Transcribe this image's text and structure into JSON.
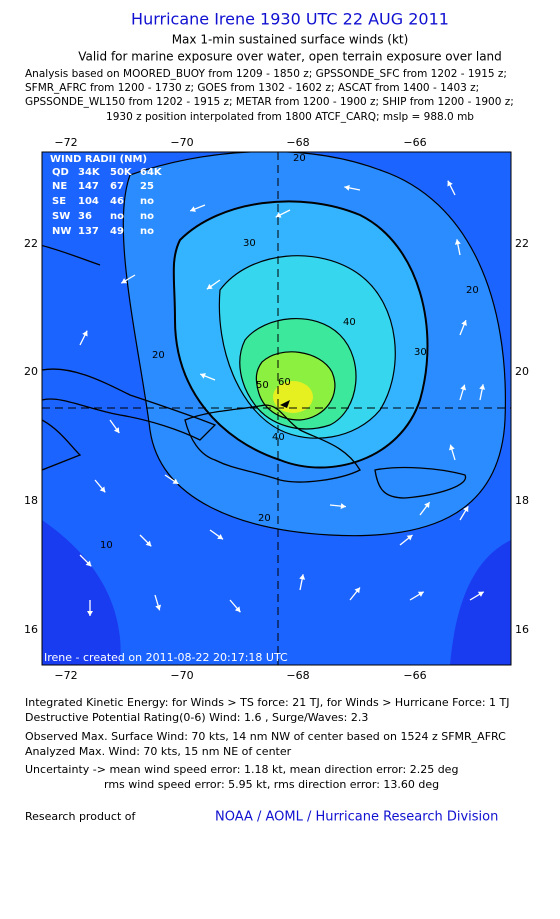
{
  "header": {
    "title": "Hurricane Irene 1930 UTC 22 AUG 2011",
    "subtitle": "Max 1-min sustained surface winds (kt)",
    "validity": "Valid for marine exposure over water, open terrain exposure over land",
    "analysis": [
      "Analysis based on MOORED_BUOY from 1209 - 1850 z; GPSSONDE_SFC from 1202 - 1915 z;",
      "SFMR_AFRC from 1200 - 1730 z; GOES from 1302 - 1602 z; ASCAT from 1400 - 1403 z;",
      "GPSSONDE_WL150 from 1202 - 1915 z; METAR from 1200 - 1900 z; SHIP from 1200 - 1900 z;",
      "1930 z position interpolated from 1800 ATCF_CARQ; mslp = 988.0 mb"
    ]
  },
  "map": {
    "lon_ticks": [
      "−72",
      "−70",
      "−68",
      "−66"
    ],
    "lat_ticks": [
      "22",
      "20",
      "18",
      "16"
    ],
    "contour_labels": [
      "20",
      "30",
      "40",
      "50",
      "60",
      "30",
      "20",
      "20",
      "20",
      "10",
      "40"
    ],
    "credit": "Irene - created on 2011-08-22 20:17:18 UTC",
    "wind_radii": {
      "title": "WIND RADII (NM)",
      "header": [
        "QD",
        "34K",
        "50K",
        "64K"
      ],
      "rows": [
        [
          "NE",
          "147",
          "67",
          "25"
        ],
        [
          "SE",
          "104",
          "46",
          "no"
        ],
        [
          "SW",
          "36",
          "no",
          "no"
        ],
        [
          "NW",
          "137",
          "49",
          "no"
        ]
      ]
    }
  },
  "footer": {
    "lines": [
      "Integrated Kinetic Energy:  for Winds > TS force: 21 TJ,  for Winds > Hurricane Force: 1 TJ",
      "Destructive Potential Rating(0-6)   Wind: 1.6 , Surge/Waves: 2.3",
      "Observed Max. Surface Wind: 70 kts, 14 nm NW of center based on 1524 z SFMR_AFRC",
      "Analyzed Max. Wind: 70 kts, 15 nm NE of center",
      "Uncertainty -> mean wind speed error: 1.18 kt,   mean direction error: 2.25 deg",
      "rms wind speed error: 5.95 kt,   rms direction error: 13.60 deg"
    ],
    "research": "Research product of",
    "org": "NOAA / AOML / Hurricane Research Division"
  }
}
